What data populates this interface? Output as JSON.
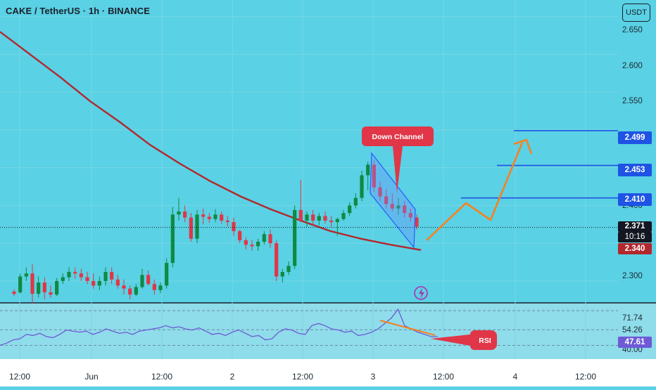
{
  "header": {
    "title": "CAKE / TetherUS · 1h · BINANCE",
    "currency": "USDT"
  },
  "price_axis": {
    "ticks": [
      "2.650",
      "2.600",
      "2.550",
      "2.400",
      "2.300"
    ],
    "levels": [
      {
        "label": "2.499",
        "value": 2.499,
        "color": "#1e53e5"
      },
      {
        "label": "2.453",
        "value": 2.453,
        "color": "#1e53e5"
      },
      {
        "label": "2.410",
        "value": 2.41,
        "color": "#1e53e5"
      }
    ],
    "last_price": "2.371",
    "countdown": "10:16",
    "ma_price": "2.340"
  },
  "rsi_axis": {
    "ticks": [
      "71.74",
      "54.26",
      "40.00"
    ],
    "current": "47.61"
  },
  "time_axis": [
    "12:00",
    "Jun",
    "12:00",
    "2",
    "12:00",
    "3",
    "12:00",
    "4",
    "12:00"
  ],
  "annotations": {
    "channel": "Down Channel",
    "rsi": "RSI"
  },
  "colors": {
    "up": "#0e8a42",
    "down": "#e03648",
    "ma": "#b2282e",
    "projection": "#f58220",
    "level": "#1e53e5",
    "rsi": "#6f5ad6"
  },
  "chart_data": {
    "type": "candlestick",
    "symbol": "CAKE / TetherUS",
    "interval": "1h",
    "y_range": [
      2.272,
      2.672
    ],
    "candles": [
      [
        2.286,
        2.289,
        2.28,
        2.283
      ],
      [
        2.285,
        2.31,
        2.283,
        2.306
      ],
      [
        2.306,
        2.318,
        2.3,
        2.31
      ],
      [
        2.31,
        2.322,
        2.27,
        2.283
      ],
      [
        2.283,
        2.306,
        2.278,
        2.298
      ],
      [
        2.298,
        2.305,
        2.276,
        2.285
      ],
      [
        2.285,
        2.294,
        2.278,
        2.282
      ],
      [
        2.282,
        2.304,
        2.28,
        2.3
      ],
      [
        2.3,
        2.31,
        2.296,
        2.305
      ],
      [
        2.305,
        2.318,
        2.3,
        2.312
      ],
      [
        2.312,
        2.318,
        2.303,
        2.31
      ],
      [
        2.31,
        2.316,
        2.3,
        2.305
      ],
      [
        2.305,
        2.312,
        2.296,
        2.3
      ],
      [
        2.3,
        2.31,
        2.29,
        2.294
      ],
      [
        2.294,
        2.306,
        2.288,
        2.3
      ],
      [
        2.3,
        2.318,
        2.294,
        2.312
      ],
      [
        2.312,
        2.318,
        2.296,
        2.302
      ],
      [
        2.302,
        2.308,
        2.29,
        2.294
      ],
      [
        2.294,
        2.302,
        2.282,
        2.29
      ],
      [
        2.29,
        2.294,
        2.276,
        2.282
      ],
      [
        2.282,
        2.296,
        2.28,
        2.292
      ],
      [
        2.292,
        2.316,
        2.29,
        2.308
      ],
      [
        2.308,
        2.314,
        2.294,
        2.296
      ],
      [
        2.296,
        2.302,
        2.282,
        2.288
      ],
      [
        2.288,
        2.298,
        2.284,
        2.294
      ],
      [
        2.294,
        2.33,
        2.29,
        2.324
      ],
      [
        2.324,
        2.398,
        2.318,
        2.388
      ],
      [
        2.388,
        2.41,
        2.38,
        2.392
      ],
      [
        2.392,
        2.4,
        2.378,
        2.384
      ],
      [
        2.384,
        2.39,
        2.352,
        2.356
      ],
      [
        2.356,
        2.394,
        2.35,
        2.388
      ],
      [
        2.388,
        2.396,
        2.375,
        2.385
      ],
      [
        2.385,
        2.39,
        2.377,
        2.382
      ],
      [
        2.382,
        2.395,
        2.378,
        2.388
      ],
      [
        2.388,
        2.392,
        2.376,
        2.38
      ],
      [
        2.38,
        2.386,
        2.372,
        2.378
      ],
      [
        2.378,
        2.384,
        2.36,
        2.366
      ],
      [
        2.366,
        2.368,
        2.35,
        2.354
      ],
      [
        2.354,
        2.358,
        2.342,
        2.348
      ],
      [
        2.348,
        2.354,
        2.34,
        2.346
      ],
      [
        2.346,
        2.356,
        2.34,
        2.352
      ],
      [
        2.352,
        2.366,
        2.348,
        2.362
      ],
      [
        2.362,
        2.368,
        2.344,
        2.35
      ],
      [
        2.35,
        2.354,
        2.3,
        2.306
      ],
      [
        2.306,
        2.316,
        2.298,
        2.312
      ],
      [
        2.312,
        2.326,
        2.308,
        2.32
      ],
      [
        2.32,
        2.4,
        2.316,
        2.394
      ],
      [
        2.394,
        2.434,
        2.378,
        2.38
      ],
      [
        2.38,
        2.392,
        2.372,
        2.388
      ],
      [
        2.388,
        2.394,
        2.374,
        2.38
      ],
      [
        2.38,
        2.39,
        2.374,
        2.386
      ],
      [
        2.386,
        2.392,
        2.376,
        2.38
      ],
      [
        2.38,
        2.386,
        2.372,
        2.378
      ],
      [
        2.378,
        2.384,
        2.36,
        2.382
      ],
      [
        2.382,
        2.394,
        2.38,
        2.39
      ],
      [
        2.39,
        2.404,
        2.386,
        2.4
      ],
      [
        2.4,
        2.416,
        2.396,
        2.41
      ],
      [
        2.41,
        2.446,
        2.406,
        2.44
      ],
      [
        2.44,
        2.458,
        2.42,
        2.454
      ],
      [
        2.454,
        2.46,
        2.418,
        2.424
      ],
      [
        2.424,
        2.432,
        2.406,
        2.412
      ],
      [
        2.412,
        2.422,
        2.396,
        2.402
      ],
      [
        2.402,
        2.416,
        2.392,
        2.396
      ],
      [
        2.396,
        2.41,
        2.388,
        2.4
      ],
      [
        2.4,
        2.406,
        2.384,
        2.39
      ],
      [
        2.39,
        2.396,
        2.378,
        2.384
      ],
      [
        2.384,
        2.388,
        2.368,
        2.372
      ]
    ],
    "moving_average": [
      [
        0,
        2.63
      ],
      [
        80,
        2.6
      ],
      [
        160,
        2.57
      ],
      [
        240,
        2.538
      ],
      [
        320,
        2.51
      ],
      [
        400,
        2.48
      ],
      [
        480,
        2.455
      ],
      [
        560,
        2.432
      ],
      [
        640,
        2.412
      ],
      [
        720,
        2.395
      ],
      [
        800,
        2.38
      ],
      [
        880,
        2.366
      ],
      [
        960,
        2.356
      ],
      [
        1040,
        2.348
      ],
      [
        1120,
        2.341
      ]
    ],
    "rsi": {
      "levels": [
        71.74,
        54.26,
        40.0
      ],
      "current": 47.61,
      "values": [
        40,
        42,
        45,
        46,
        50,
        49,
        51,
        48,
        47,
        50,
        54,
        53,
        52,
        53,
        50,
        52,
        55,
        53,
        51,
        52,
        50,
        53,
        54,
        55,
        56,
        58,
        56,
        57,
        55,
        54,
        56,
        53,
        50,
        51,
        49,
        52,
        54,
        51,
        48,
        49,
        45,
        46,
        52,
        55,
        54,
        51,
        50,
        58,
        60,
        58,
        55,
        54,
        52,
        53,
        49,
        50,
        52,
        55,
        60,
        65,
        73,
        58,
        55,
        52,
        50,
        48,
        48
      ]
    },
    "projection": [
      [
        2.349
      ],
      [
        2.41
      ],
      [
        2.38
      ],
      [
        2.499
      ],
      [
        2.48
      ]
    ]
  }
}
